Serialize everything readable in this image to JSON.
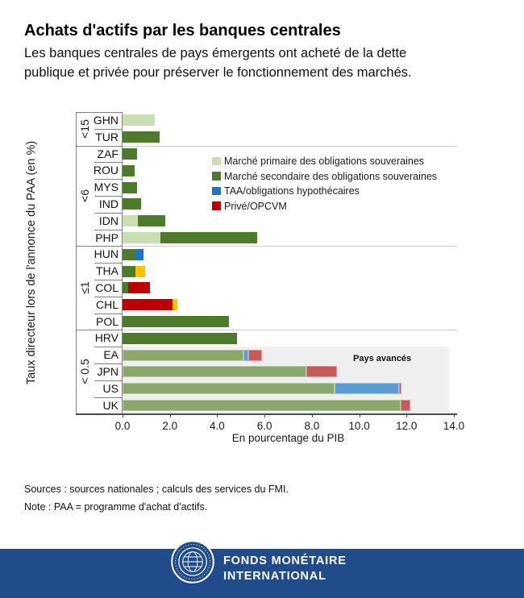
{
  "header": {
    "title": "Achats d'actifs par les banques centrales",
    "subtitle_line1": "Les banques centrales de pays émergents ont acheté de la dette",
    "subtitle_line2": "publique et privée pour préserver le fonctionnement des marchés."
  },
  "chart_data": {
    "type": "bar",
    "orientation": "horizontal",
    "xlabel": "En pourcentage du PIB",
    "ylabel": "Taux directeur lors de l'annonce du PAA (en %)",
    "xlim": [
      0,
      14
    ],
    "xtick_labels": [
      "0.0",
      "2.0",
      "4.0",
      "6.0",
      "8.0",
      "10.0",
      "12.0",
      "14.0"
    ],
    "grid": false,
    "legend_position": "inside-upper-right",
    "legend": [
      {
        "id": "primaire",
        "label": "Marché primaire des obligations souveraines",
        "color": "#c9dfb2"
      },
      {
        "id": "secondaire",
        "label": "Marché secondaire des obligations souveraines",
        "color": "#4e7a2c"
      },
      {
        "id": "taa",
        "label": "TAA/obligations hypothécaires",
        "color": "#1b76c6"
      },
      {
        "id": "prive",
        "label": "Privé/OPCVM",
        "color": "#c00000"
      }
    ],
    "segment_colors": {
      "primaire": "#c9dfb2",
      "secondaire": "#4e7a2c",
      "taa": "#1b76c6",
      "prive": "#c00000",
      "autre": "#ffc000"
    },
    "advanced_segment_colors": {
      "secondaire": "#89a86b",
      "taa": "#5b9bd5",
      "prive": "#c65959"
    },
    "advanced_box": {
      "label": "Pays avancés",
      "x_start": 0,
      "x_end": 13.8,
      "bg": "#efefef"
    },
    "groups": [
      {
        "label": "<15",
        "countries": [
          "GHN",
          "TUR"
        ]
      },
      {
        "label": "<6",
        "countries": [
          "ZAF",
          "ROU",
          "MYS",
          "IND",
          "IDN",
          "PHP"
        ]
      },
      {
        "label": "≤1",
        "countries": [
          "HUN",
          "THA",
          "COL",
          "CHL",
          "POL"
        ]
      },
      {
        "label": "< 0.5",
        "countries": [
          "HRV",
          "EA",
          "JPN",
          "US",
          "UK"
        ]
      }
    ],
    "rows": [
      {
        "country": "GHN",
        "advanced": false,
        "segments": [
          {
            "type": "primaire",
            "value": 1.35
          }
        ]
      },
      {
        "country": "TUR",
        "advanced": false,
        "segments": [
          {
            "type": "secondaire",
            "value": 1.55
          }
        ]
      },
      {
        "country": "ZAF",
        "advanced": false,
        "segments": [
          {
            "type": "secondaire",
            "value": 0.6
          }
        ]
      },
      {
        "country": "ROU",
        "advanced": false,
        "segments": [
          {
            "type": "secondaire",
            "value": 0.5
          }
        ]
      },
      {
        "country": "MYS",
        "advanced": false,
        "segments": [
          {
            "type": "secondaire",
            "value": 0.6
          }
        ]
      },
      {
        "country": "IND",
        "advanced": false,
        "segments": [
          {
            "type": "secondaire",
            "value": 0.8
          }
        ]
      },
      {
        "country": "IDN",
        "advanced": false,
        "segments": [
          {
            "type": "primaire",
            "value": 0.65
          },
          {
            "type": "secondaire",
            "value": 1.15
          }
        ]
      },
      {
        "country": "PHP",
        "advanced": false,
        "segments": [
          {
            "type": "primaire",
            "value": 1.6
          },
          {
            "type": "secondaire",
            "value": 4.1
          }
        ]
      },
      {
        "country": "HUN",
        "advanced": false,
        "segments": [
          {
            "type": "secondaire",
            "value": 0.5
          },
          {
            "type": "taa",
            "value": 0.4
          }
        ]
      },
      {
        "country": "THA",
        "advanced": false,
        "segments": [
          {
            "type": "secondaire",
            "value": 0.55
          },
          {
            "type": "autre",
            "value": 0.4
          }
        ]
      },
      {
        "country": "COL",
        "advanced": false,
        "segments": [
          {
            "type": "secondaire",
            "value": 0.25
          },
          {
            "type": "prive",
            "value": 0.9
          }
        ]
      },
      {
        "country": "CHL",
        "advanced": false,
        "segments": [
          {
            "type": "prive",
            "value": 2.1
          },
          {
            "type": "autre",
            "value": 0.2
          }
        ]
      },
      {
        "country": "POL",
        "advanced": false,
        "segments": [
          {
            "type": "secondaire",
            "value": 4.5
          }
        ]
      },
      {
        "country": "HRV",
        "advanced": false,
        "segments": [
          {
            "type": "secondaire",
            "value": 4.85
          }
        ]
      },
      {
        "country": "EA",
        "advanced": true,
        "segments": [
          {
            "type": "secondaire",
            "value": 5.1
          },
          {
            "type": "taa",
            "value": 0.2
          },
          {
            "type": "prive",
            "value": 0.6
          }
        ]
      },
      {
        "country": "JPN",
        "advanced": true,
        "segments": [
          {
            "type": "secondaire",
            "value": 7.75
          },
          {
            "type": "prive",
            "value": 1.3
          }
        ]
      },
      {
        "country": "US",
        "advanced": true,
        "segments": [
          {
            "type": "secondaire",
            "value": 8.95
          },
          {
            "type": "taa",
            "value": 2.75
          },
          {
            "type": "prive",
            "value": 0.1
          }
        ]
      },
      {
        "country": "UK",
        "advanced": true,
        "segments": [
          {
            "type": "secondaire",
            "value": 11.75
          },
          {
            "type": "prive",
            "value": 0.4
          }
        ]
      }
    ]
  },
  "footnotes": {
    "sources": "Sources : sources nationales ; calculs des services du FMI.",
    "note": "Note : PAA = programme d'achat d'actifs."
  },
  "footer": {
    "bg": "#214c8c",
    "org_line1": "FONDS MONÉTAIRE",
    "org_line2": "INTERNATIONAL"
  }
}
